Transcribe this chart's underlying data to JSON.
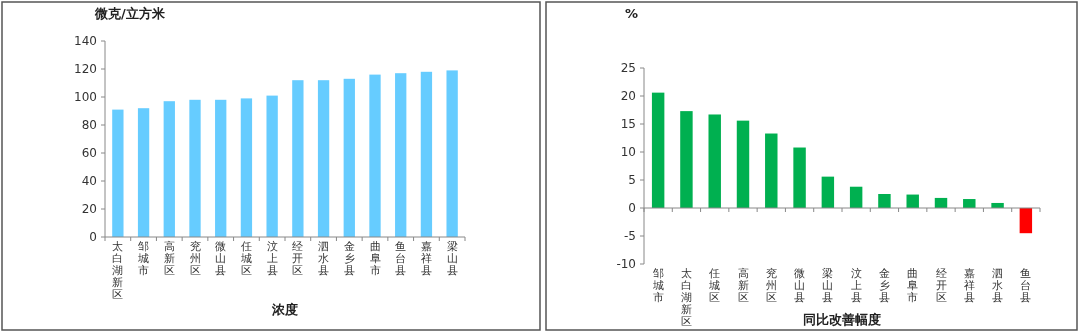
{
  "chart_data": [
    {
      "type": "bar",
      "ylabel": "微克/立方米",
      "xlabel": "浓度",
      "categories": [
        "太白湖新区",
        "邹城市",
        "高新区",
        "兖州区",
        "微山县",
        "任城区",
        "汶上县",
        "经开区",
        "泗水县",
        "金乡县",
        "曲阜市",
        "鱼台县",
        "嘉祥县",
        "梁山县"
      ],
      "values": [
        91,
        92,
        97,
        98,
        98,
        99,
        101,
        112,
        112,
        113,
        116,
        117,
        118,
        119
      ],
      "color": "#66ccff",
      "ylim": [
        0,
        140
      ],
      "yticks": [
        0,
        20,
        40,
        60,
        80,
        100,
        120,
        140
      ]
    },
    {
      "type": "bar",
      "ylabel": "%",
      "xlabel": "同比改善幅度",
      "categories": [
        "邹城市",
        "太白湖新区",
        "任城区",
        "高新区",
        "兖州区",
        "微山县",
        "梁山县",
        "汶上县",
        "金乡县",
        "曲阜市",
        "经开区",
        "嘉祥县",
        "泗水县",
        "鱼台县"
      ],
      "values": [
        20.6,
        17.3,
        16.7,
        15.6,
        13.3,
        10.8,
        5.6,
        3.8,
        2.5,
        2.4,
        1.8,
        1.6,
        0.9,
        -4.5
      ],
      "colors": [
        "#00b050",
        "#00b050",
        "#00b050",
        "#00b050",
        "#00b050",
        "#00b050",
        "#00b050",
        "#00b050",
        "#00b050",
        "#00b050",
        "#00b050",
        "#00b050",
        "#00b050",
        "#ff0000"
      ],
      "ylim": [
        -10,
        25
      ],
      "yticks": [
        -10,
        -5,
        0,
        5,
        10,
        15,
        20,
        25
      ]
    }
  ]
}
